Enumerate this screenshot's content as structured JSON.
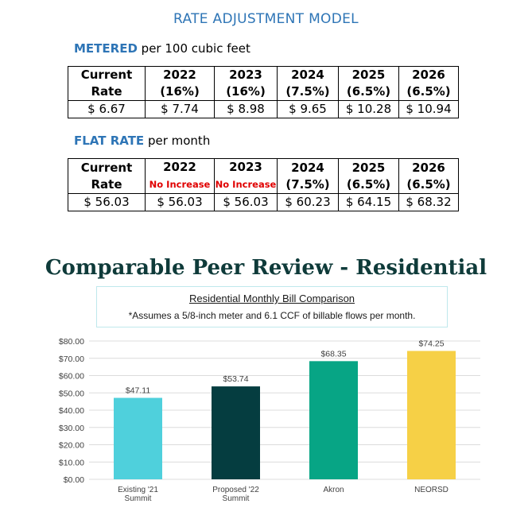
{
  "page_title": "RATE ADJUSTMENT MODEL",
  "metered": {
    "label_strong": "METERED",
    "label_rest": " per 100 cubic feet",
    "columns": [
      {
        "line1": "Current",
        "line2": "Rate"
      },
      {
        "line1": "2022",
        "line2": "(16%)"
      },
      {
        "line1": "2023",
        "line2": "(16%)"
      },
      {
        "line1": "2024",
        "line2": "(7.5%)"
      },
      {
        "line1": "2025",
        "line2": "(6.5%)"
      },
      {
        "line1": "2026",
        "line2": "(6.5%)"
      }
    ],
    "values": [
      "$ 6.67",
      "$ 7.74",
      "$ 8.98",
      "$ 9.65",
      "$ 10.28",
      "$ 10.94"
    ]
  },
  "flat": {
    "label_strong": "FLAT RATE",
    "label_rest": " per month",
    "columns": [
      {
        "line1": "Current",
        "line2": "Rate"
      },
      {
        "line1": "2022",
        "line2": "No Increase"
      },
      {
        "line1": "2023",
        "line2": "No Increase"
      },
      {
        "line1": "2024",
        "line2": "(7.5%)"
      },
      {
        "line1": "2025",
        "line2": "(6.5%)"
      },
      {
        "line1": "2026",
        "line2": "(6.5%)"
      }
    ],
    "values": [
      "$ 56.03",
      "$ 56.03",
      "$ 56.03",
      "$ 60.23",
      "$ 64.15",
      "$ 68.32"
    ]
  },
  "peer_title": "Comparable Peer Review - Residential",
  "note": {
    "title": "Residential Monthly Bill Comparison",
    "subtitle": "*Assumes a 5/8-inch meter and 6.1 CCF of billable flows per month."
  },
  "chart_data": {
    "type": "bar",
    "categories": [
      [
        "Existing '21",
        "Summit"
      ],
      [
        "Proposed '22",
        "Summit"
      ],
      [
        "Akron"
      ],
      [
        "NEORSD"
      ]
    ],
    "values": [
      47.11,
      53.74,
      68.35,
      74.25
    ],
    "data_labels": [
      "$47.11",
      "$53.74",
      "$68.35",
      "$74.25"
    ],
    "colors": [
      "#4fd0dc",
      "#053d40",
      "#07a585",
      "#f6d046"
    ],
    "ylim": [
      0,
      80
    ],
    "yticks": [
      0,
      10,
      20,
      30,
      40,
      50,
      60,
      70,
      80
    ],
    "ytick_labels": [
      "$0.00",
      "$10.00",
      "$20.00",
      "$30.00",
      "$40.00",
      "$50.00",
      "$60.00",
      "$70.00",
      "$80.00"
    ],
    "grid": true,
    "title": "",
    "xlabel": "",
    "ylabel": ""
  }
}
